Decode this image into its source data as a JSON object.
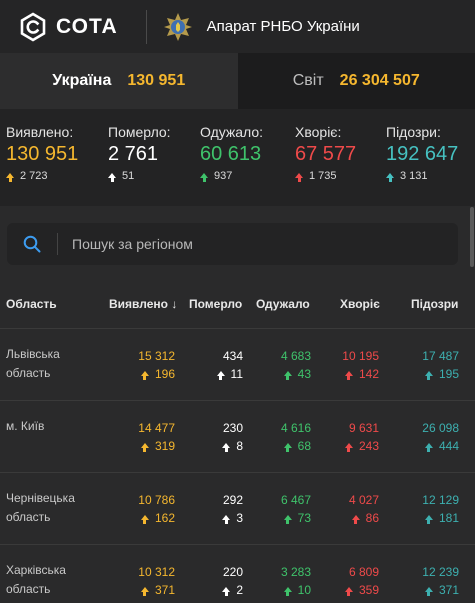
{
  "header": {
    "brand": "СОТА",
    "org": "Апарат РНБО України"
  },
  "tabs": [
    {
      "label": "Україна",
      "count": "130 951"
    },
    {
      "label": "Світ",
      "count": "26 304 507"
    }
  ],
  "summary": [
    {
      "label": "Виявлено:",
      "value": "130 951",
      "delta": "2 723",
      "color": "#f5b72f"
    },
    {
      "label": "Померло:",
      "value": "2 761",
      "delta": "51",
      "color": "#ffffff"
    },
    {
      "label": "Одужало:",
      "value": "60 613",
      "delta": "937",
      "color": "#3fc36b"
    },
    {
      "label": "Хворіє:",
      "value": "67 577",
      "delta": "1 735",
      "color": "#ef4a4a"
    },
    {
      "label": "Підозри:",
      "value": "192 647",
      "delta": "3 131",
      "color": "#46c1c1"
    }
  ],
  "search": {
    "placeholder": "Пошук за регіоном"
  },
  "table": {
    "headers": [
      "Область",
      "Виявлено ↓",
      "Померло",
      "Одужало",
      "Хворіє",
      "Підозри"
    ],
    "rows": [
      {
        "region": "Львівська область",
        "confirmed": "15 312",
        "confirmed_d": "196",
        "deaths": "434",
        "deaths_d": "11",
        "recovered": "4 683",
        "recovered_d": "43",
        "sick": "10 195",
        "sick_d": "142",
        "suspect": "17 487",
        "suspect_d": "195"
      },
      {
        "region": "м. Київ",
        "confirmed": "14 477",
        "confirmed_d": "319",
        "deaths": "230",
        "deaths_d": "8",
        "recovered": "4 616",
        "recovered_d": "68",
        "sick": "9 631",
        "sick_d": "243",
        "suspect": "26 098",
        "suspect_d": "444"
      },
      {
        "region": "Чернівецька область",
        "confirmed": "10 786",
        "confirmed_d": "162",
        "deaths": "292",
        "deaths_d": "3",
        "recovered": "6 467",
        "recovered_d": "73",
        "sick": "4 027",
        "sick_d": "86",
        "suspect": "12 129",
        "suspect_d": "181"
      },
      {
        "region": "Харківська область",
        "confirmed": "10 312",
        "confirmed_d": "371",
        "deaths": "220",
        "deaths_d": "2",
        "recovered": "3 283",
        "recovered_d": "10",
        "sick": "6 809",
        "sick_d": "359",
        "suspect": "12 239",
        "suspect_d": "371"
      }
    ]
  }
}
